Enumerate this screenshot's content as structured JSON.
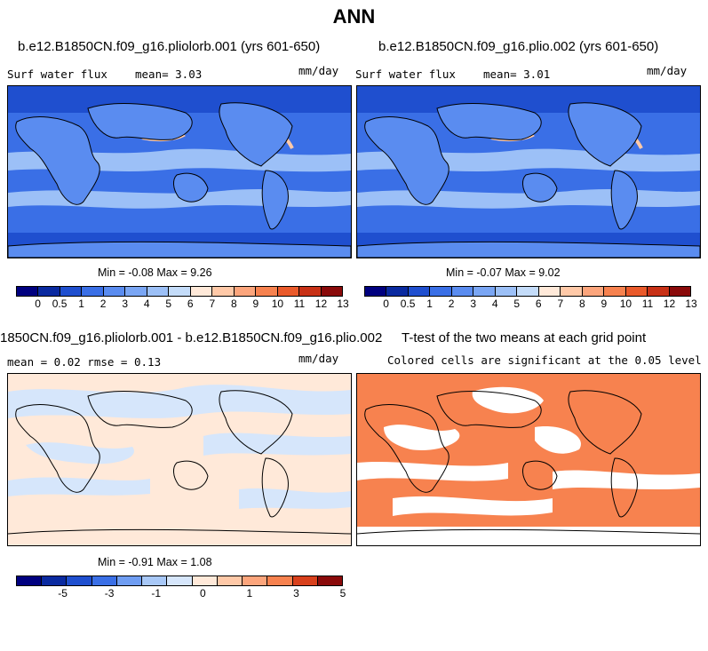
{
  "page": {
    "title": "ANN"
  },
  "panels": [
    {
      "title": "b.e12.B1850CN.f09_g16.pliolorb.001 (yrs 601-650)",
      "variable": "Surf water flux",
      "stat_text": "mean=   3.03",
      "units": "mm/day",
      "minmax_text": "Min =  -0.08 Max =   9.26"
    },
    {
      "title": "b.e12.B1850CN.f09_g16.plio.002 (yrs 601-650)",
      "variable": "Surf water flux",
      "stat_text": "mean=   3.01",
      "units": "mm/day",
      "minmax_text": "Min =  -0.07 Max =   9.02"
    },
    {
      "title": "1850CN.f09_g16.pliolorb.001 - b.e12.B1850CN.f09_g16.plio.002",
      "stat_text": "mean =   0.02      rmse =   0.13",
      "units": "mm/day",
      "minmax_text": "Min =  -0.91 Max =   1.08"
    },
    {
      "title": "T-test of the two means at each grid point",
      "subtitle": "Colored cells are significant at the 0.05 level"
    }
  ],
  "colorbars": {
    "abs": {
      "colors": [
        "#00007f",
        "#0a2aa0",
        "#1f4fcf",
        "#3a6fe6",
        "#5a8cf0",
        "#7aa6f4",
        "#9cc0f7",
        "#c4dcf9",
        "#ffe9d9",
        "#ffc9a8",
        "#fca57c",
        "#f7824f",
        "#ea5a2b",
        "#c83116",
        "#8a0a0a"
      ],
      "tick_labels": [
        "0",
        "0.5",
        "1",
        "2",
        "3",
        "4",
        "5",
        "6",
        "7",
        "8",
        "9",
        "10",
        "11",
        "12",
        "13"
      ]
    },
    "diff": {
      "colors": [
        "#00007f",
        "#0a2aa0",
        "#1f4fcf",
        "#3a6fe6",
        "#6f9df2",
        "#a8c8f7",
        "#d6e6fb",
        "#ffe9d9",
        "#ffc9a8",
        "#fca57c",
        "#f7824f",
        "#d8401c",
        "#8a0a0a"
      ],
      "tick_labels": [
        "-5",
        "-3",
        "-1",
        "0",
        "1",
        "3",
        "5"
      ]
    }
  },
  "map_colors": {
    "ocean_dark": "#1f4fcf",
    "ocean_mid": "#3a6fe6",
    "ocean_light": "#7aa6f4",
    "diff_pos": "#ffe9d9",
    "diff_neg": "#d6e6fb",
    "ttest_sig": "#f7824f"
  }
}
